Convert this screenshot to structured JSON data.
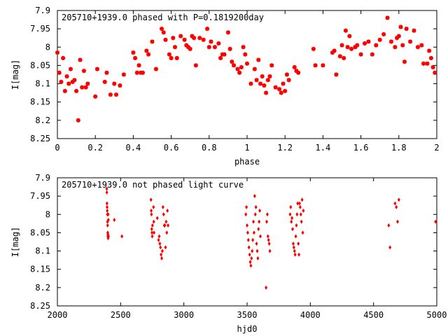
{
  "chart_data": [
    {
      "type": "scatter",
      "title": "205710+1939.0 phased with P=0.1819200day",
      "xlabel": "phase",
      "ylabel": "I[mag]",
      "xlim": [
        0,
        2
      ],
      "ylim": [
        7.9,
        8.25
      ],
      "y_inverted": true,
      "xticks": [
        0,
        0.2,
        0.4,
        0.6,
        0.8,
        1,
        1.2,
        1.4,
        1.6,
        1.8,
        2
      ],
      "yticks": [
        7.9,
        7.95,
        8,
        8.05,
        8.1,
        8.15,
        8.2,
        8.25
      ],
      "xtick_labels": [
        "0",
        "0.2",
        "0.4",
        "0.6",
        "0.8",
        "1",
        "1.2",
        "1.4",
        "1.6",
        "1.8",
        "2"
      ],
      "ytick_labels": [
        "7.9",
        "7.95",
        "8",
        "8.05",
        "8.1",
        "8.15",
        "8.2",
        "8.25"
      ],
      "grid": false,
      "marker_color": "#ff0000",
      "marker": "star",
      "x": [
        0.0,
        0.01,
        0.02,
        0.03,
        0.04,
        0.05,
        0.06,
        0.07,
        0.08,
        0.09,
        0.1,
        0.11,
        0.12,
        0.13,
        0.14,
        0.15,
        0.16,
        0.2,
        0.21,
        0.25,
        0.26,
        0.28,
        0.3,
        0.31,
        0.33,
        0.35,
        0.4,
        0.41,
        0.42,
        0.43,
        0.44,
        0.45,
        0.47,
        0.48,
        0.5,
        0.52,
        0.55,
        0.56,
        0.57,
        0.59,
        0.6,
        0.61,
        0.62,
        0.63,
        0.65,
        0.67,
        0.68,
        0.69,
        0.7,
        0.71,
        0.72,
        0.73,
        0.75,
        0.77,
        0.79,
        0.8,
        0.81,
        0.83,
        0.85,
        0.86,
        0.87,
        0.88,
        0.9,
        0.91,
        0.92,
        0.93,
        0.95,
        0.96,
        0.97,
        0.98,
        0.99,
        1.0,
        1.02,
        1.04,
        1.05,
        1.06,
        1.07,
        1.08,
        1.09,
        1.1,
        1.11,
        1.12,
        1.13,
        1.15,
        1.17,
        1.18,
        1.19,
        1.2,
        1.21,
        1.22,
        1.25,
        1.26,
        1.27,
        1.35,
        1.36,
        1.4,
        1.45,
        1.46,
        1.47,
        1.49,
        1.5,
        1.51,
        1.52,
        1.53,
        1.54,
        1.55,
        1.57,
        1.58,
        1.6,
        1.62,
        1.64,
        1.66,
        1.68,
        1.7,
        1.72,
        1.74,
        1.76,
        1.78,
        1.79,
        1.8,
        1.81,
        1.82,
        1.83,
        1.84,
        1.86,
        1.88,
        1.9,
        1.92,
        1.93,
        1.95,
        1.96,
        1.97,
        1.98,
        1.99
      ],
      "y": [
        8.015,
        8.07,
        8.095,
        8.03,
        8.12,
        8.08,
        8.1,
        8.06,
        8.095,
        8.09,
        8.12,
        8.2,
        8.035,
        8.11,
        8.065,
        8.11,
        8.1,
        8.135,
        8.06,
        8.095,
        8.07,
        8.13,
        8.1,
        8.13,
        8.105,
        8.075,
        8.015,
        8.03,
        8.07,
        8.05,
        8.07,
        8.07,
        8.01,
        8.02,
        7.985,
        8.06,
        7.95,
        7.96,
        7.98,
        8.02,
        8.03,
        7.975,
        8.0,
        8.03,
        7.97,
        7.98,
        7.995,
        8.0,
        8.005,
        7.97,
        7.975,
        8.05,
        7.975,
        7.98,
        7.95,
        8.0,
        7.985,
        8.0,
        7.99,
        8.03,
        8.02,
        8.02,
        7.96,
        8.005,
        8.04,
        8.05,
        8.06,
        8.07,
        8.055,
        8.0,
        8.02,
        8.045,
        8.1,
        8.06,
        8.09,
        8.035,
        8.1,
        8.08,
        8.105,
        8.125,
        8.09,
        8.08,
        8.05,
        8.11,
        8.115,
        8.125,
        8.1,
        8.12,
        8.075,
        8.09,
        8.055,
        8.065,
        8.07,
        8.005,
        8.05,
        8.05,
        8.015,
        8.01,
        8.075,
        8.025,
        7.995,
        8.03,
        7.955,
        8.0,
        7.97,
        8.005,
        8.0,
        7.995,
        8.02,
        7.99,
        7.985,
        8.02,
        7.995,
        7.98,
        7.965,
        7.92,
        7.985,
        8.0,
        7.975,
        7.97,
        7.945,
        7.995,
        8.04,
        7.95,
        7.985,
        7.955,
        8.0,
        7.995,
        8.045,
        8.045,
        8.01,
        8.03,
        8.055,
        8.07
      ]
    },
    {
      "type": "scatter",
      "title": "205710+1939.0 not phased light curve",
      "xlabel": "hjd0",
      "ylabel": "I[mag]",
      "xlim": [
        2000,
        5000
      ],
      "ylim": [
        7.9,
        8.25
      ],
      "y_inverted": true,
      "xticks": [
        2000,
        2500,
        3000,
        3500,
        4000,
        4500,
        5000
      ],
      "yticks": [
        7.9,
        7.95,
        8,
        8.05,
        8.1,
        8.15,
        8.2,
        8.25
      ],
      "xtick_labels": [
        "2000",
        "2500",
        "3000",
        "3500",
        "4000",
        "4500",
        "5000"
      ],
      "ytick_labels": [
        "7.9",
        "7.95",
        "8",
        "8.05",
        "8.1",
        "8.15",
        "8.2",
        "8.25"
      ],
      "grid": false,
      "marker_color": "#ff0000",
      "marker": "diamond",
      "x": [
        2390,
        2391,
        2392,
        2393,
        2394,
        2395,
        2396,
        2397,
        2398,
        2399,
        2400,
        2401,
        2402,
        2403,
        2404,
        2450,
        2510,
        2740,
        2742,
        2744,
        2746,
        2748,
        2750,
        2752,
        2760,
        2762,
        2764,
        2790,
        2800,
        2805,
        2810,
        2815,
        2820,
        2825,
        2830,
        2835,
        2840,
        2845,
        2850,
        2855,
        2860,
        2865,
        2870,
        2875,
        3490,
        3495,
        3500,
        3505,
        3510,
        3515,
        3520,
        3525,
        3530,
        3535,
        3540,
        3545,
        3550,
        3555,
        3560,
        3565,
        3570,
        3575,
        3580,
        3585,
        3590,
        3595,
        3600,
        3605,
        3650,
        3655,
        3660,
        3665,
        3670,
        3675,
        3680,
        3840,
        3845,
        3850,
        3855,
        3860,
        3865,
        3870,
        3875,
        3880,
        3885,
        3890,
        3895,
        3900,
        3905,
        3910,
        3915,
        3920,
        3925,
        3930,
        3935,
        3940,
        3945,
        4620,
        4630,
        4670,
        4680,
        4690,
        4700,
        4990
      ],
      "y": [
        7.93,
        7.94,
        7.97,
        7.98,
        7.99,
        8.0,
        8.02,
        8.03,
        8.05,
        8.06,
        8.055,
        8.065,
        8.0,
        8.015,
        8.06,
        8.015,
        8.06,
        7.96,
        7.99,
        8.0,
        8.04,
        8.05,
        8.06,
        8.03,
        7.98,
        8.02,
        8.05,
        8.01,
        8.07,
        8.06,
        8.08,
        8.09,
        8.11,
        8.12,
        8.1,
        7.98,
        8.0,
        8.03,
        8.03,
        8.09,
        8.02,
        8.05,
        7.99,
        8.03,
        8.0,
        7.98,
        8.03,
        8.05,
        8.07,
        8.09,
        8.11,
        8.13,
        8.14,
        8.12,
        8.1,
        8.07,
        8.02,
        8.05,
        7.95,
        8.0,
        7.98,
        8.08,
        8.1,
        8.12,
        8.04,
        8.02,
        7.99,
        8.06,
        8.2,
        8.02,
        8.0,
        8.06,
        8.07,
        8.08,
        8.1,
        8.0,
        7.98,
        8.02,
        8.01,
        8.04,
        8.08,
        8.09,
        8.1,
        8.11,
        8.06,
        8.03,
        8.0,
        7.97,
        8.08,
        8.11,
        7.97,
        7.98,
        8.0,
        8.02,
        7.96,
        8.05,
        7.99,
        8.03,
        8.09,
        7.97,
        7.98,
        8.02,
        7.96,
        8.02
      ]
    }
  ]
}
